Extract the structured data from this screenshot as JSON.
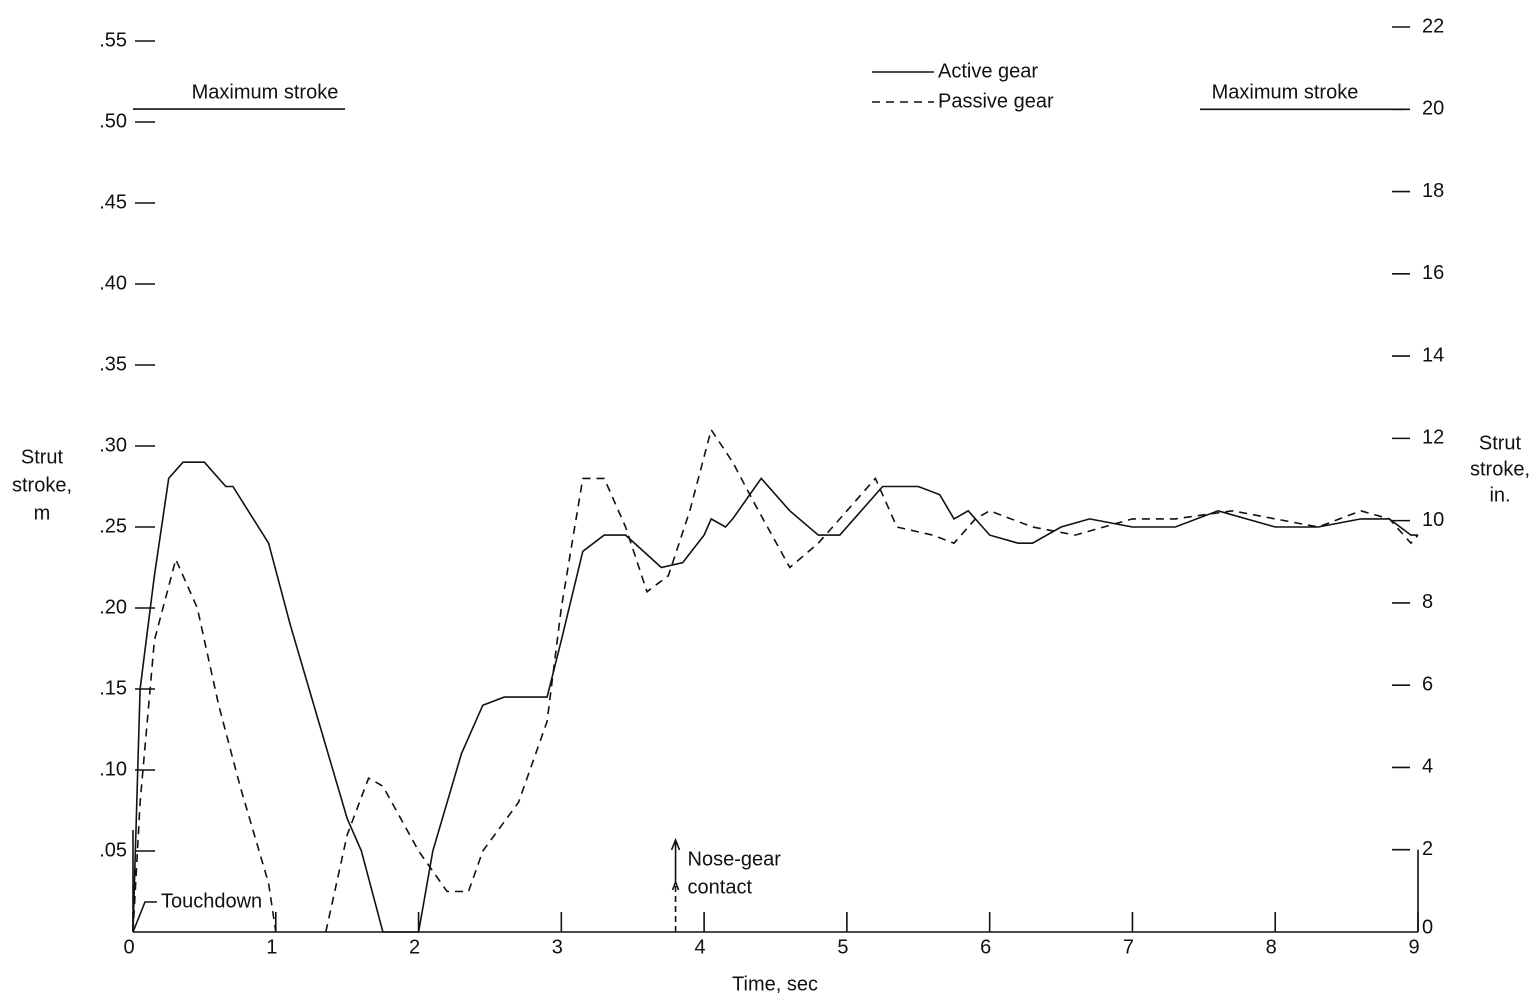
{
  "chart_data": {
    "type": "line",
    "xlabel": "Time, sec",
    "ylabel": [
      "Strut",
      "stroke,",
      "m"
    ],
    "y2label": [
      "Strut",
      "stroke,",
      "in."
    ],
    "xlim": [
      0,
      9
    ],
    "xticks": [
      0,
      1,
      2,
      3,
      4,
      5,
      6,
      7,
      8,
      9
    ],
    "ylim": [
      0,
      0.55
    ],
    "yticks": [
      {
        "value": 0.05,
        "label": ".05"
      },
      {
        "value": 0.1,
        "label": ".10"
      },
      {
        "value": 0.15,
        "label": ".15"
      },
      {
        "value": 0.2,
        "label": ".20"
      },
      {
        "value": 0.25,
        "label": ".25"
      },
      {
        "value": 0.3,
        "label": ".30"
      },
      {
        "value": 0.35,
        "label": ".35"
      },
      {
        "value": 0.4,
        "label": ".40"
      },
      {
        "value": 0.45,
        "label": ".45"
      },
      {
        "value": 0.5,
        "label": ".50"
      },
      {
        "value": 0.55,
        "label": ".55"
      }
    ],
    "y2lim": [
      0,
      22
    ],
    "y2ticks": [
      0,
      2,
      4,
      6,
      8,
      10,
      12,
      14,
      16,
      18,
      20,
      22
    ],
    "series": [
      {
        "name": "Active gear",
        "color": "#111111",
        "line_style": "solid",
        "x": [
          0,
          0.05,
          0.15,
          0.25,
          0.35,
          0.5,
          0.65,
          0.7,
          0.95,
          1.1,
          1.3,
          1.5,
          1.6,
          1.75,
          2.0,
          2.1,
          2.3,
          2.45,
          2.6,
          2.9,
          3.0,
          3.15,
          3.3,
          3.45,
          3.7,
          3.85,
          4.0,
          4.05,
          4.15,
          4.2,
          4.4,
          4.6,
          4.8,
          4.95,
          5.1,
          5.25,
          5.5,
          5.65,
          5.75,
          5.85,
          6.0,
          6.2,
          6.3,
          6.5,
          6.7,
          7.0,
          7.3,
          7.6,
          8.0,
          8.3,
          8.6,
          8.8,
          8.95,
          9.0
        ],
        "values": [
          0,
          0.15,
          0.22,
          0.28,
          0.29,
          0.29,
          0.275,
          0.275,
          0.24,
          0.19,
          0.13,
          0.07,
          0.05,
          0,
          0,
          0.05,
          0.11,
          0.14,
          0.145,
          0.145,
          0.18,
          0.235,
          0.245,
          0.245,
          0.225,
          0.228,
          0.245,
          0.255,
          0.25,
          0.255,
          0.28,
          0.26,
          0.245,
          0.245,
          0.26,
          0.275,
          0.275,
          0.27,
          0.255,
          0.26,
          0.245,
          0.24,
          0.24,
          0.25,
          0.255,
          0.25,
          0.25,
          0.26,
          0.25,
          0.25,
          0.255,
          0.255,
          0.245,
          0.245
        ]
      },
      {
        "name": "Passive gear",
        "color": "#111111",
        "line_style": "dashed",
        "x": [
          0,
          0.05,
          0.15,
          0.3,
          0.45,
          0.6,
          0.75,
          0.95,
          1.0,
          1.2,
          1.35,
          1.5,
          1.65,
          1.75,
          2.0,
          2.2,
          2.35,
          2.45,
          2.7,
          2.9,
          3.0,
          3.15,
          3.3,
          3.45,
          3.6,
          3.75,
          3.9,
          4.05,
          4.2,
          4.35,
          4.6,
          4.8,
          5.0,
          5.2,
          5.35,
          5.6,
          5.75,
          5.9,
          6.0,
          6.3,
          6.6,
          7.0,
          7.3,
          7.7,
          8.0,
          8.3,
          8.6,
          8.8,
          8.95,
          9.0
        ],
        "values": [
          0,
          0.08,
          0.18,
          0.23,
          0.2,
          0.14,
          0.09,
          0.03,
          0,
          null,
          0,
          0.06,
          0.095,
          0.09,
          0.05,
          0.025,
          0.025,
          0.05,
          0.08,
          0.13,
          0.2,
          0.28,
          0.28,
          0.25,
          0.21,
          0.22,
          0.26,
          0.31,
          0.29,
          0.265,
          0.225,
          0.24,
          0.26,
          0.28,
          0.25,
          0.245,
          0.24,
          0.255,
          0.26,
          0.25,
          0.245,
          0.255,
          0.255,
          0.26,
          0.255,
          0.25,
          0.26,
          0.255,
          0.24,
          0.245
        ]
      }
    ],
    "annotations": [
      {
        "text": "Maximum stroke",
        "y": 0.508
      },
      {
        "text": "Maximum stroke",
        "y2": 20
      },
      {
        "text": "Touchdown",
        "x": 0
      },
      {
        "text": [
          "Nose-gear",
          "contact"
        ],
        "x": 3.8
      }
    ]
  }
}
